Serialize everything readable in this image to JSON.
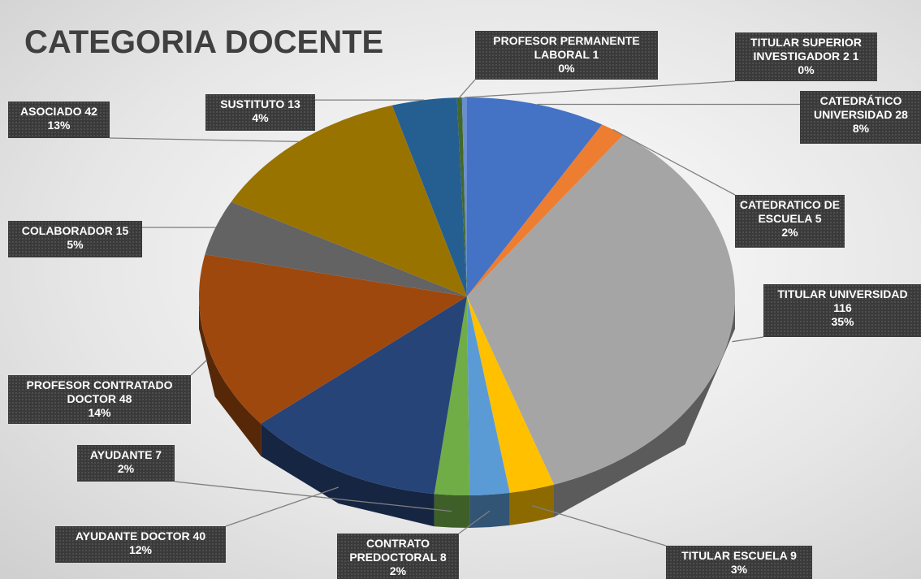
{
  "chart_data": {
    "type": "pie3d",
    "title": "CATEGORIA DOCENTE",
    "categories": [
      "CATEDRÁTICO UNIVERSIDAD",
      "CATEDRATICO DE ESCUELA ",
      "TITULAR UNIVERSIDAD",
      "TITULAR ESCUELA",
      "CONTRATO PREDOCTORAL ",
      "AYUDANTE ",
      "AYUDANTE DOCTOR",
      "PROFESOR CONTRATADO DOCTOR",
      "COLABORADOR",
      "ASOCIADO",
      "SUSTITUTO",
      "PROFESOR PERMANENTE LABORAL",
      "TITULAR SUPERIOR INVESTIGADOR 2"
    ],
    "values": [
      28,
      5,
      116,
      9,
      8,
      7,
      40,
      48,
      15,
      42,
      13,
      1,
      1
    ],
    "percent_labels": [
      "8%",
      "2%",
      "35%",
      "3%",
      "2%",
      "2%",
      "12%",
      "14%",
      "5%",
      "13%",
      "4%",
      "0%",
      "0%"
    ],
    "colors": [
      "#4472c4",
      "#ed7d31",
      "#a5a5a5",
      "#ffc000",
      "#5b9bd5",
      "#70ad47",
      "#264478",
      "#9e480e",
      "#636363",
      "#997300",
      "#255e91",
      "#43682b",
      "#698ed0"
    ]
  }
}
